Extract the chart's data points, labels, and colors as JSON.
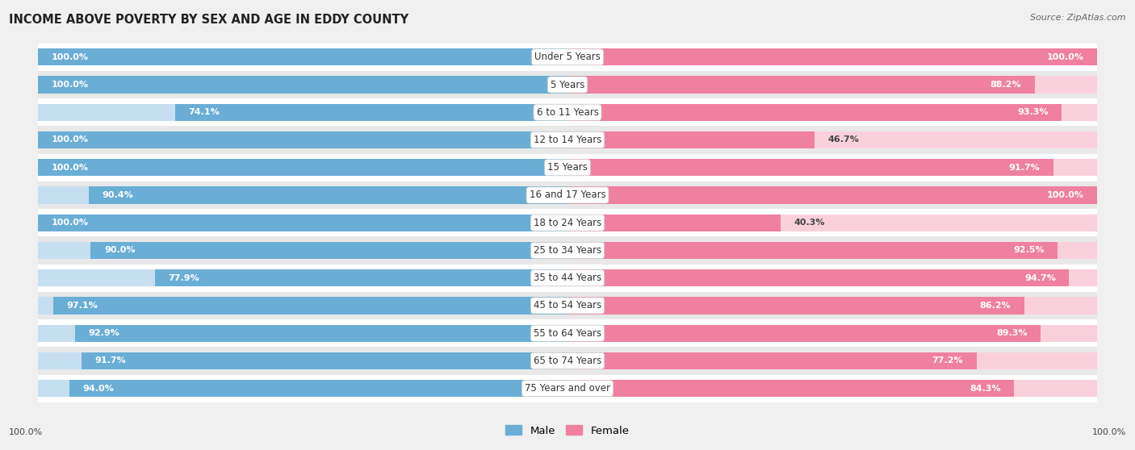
{
  "title": "INCOME ABOVE POVERTY BY SEX AND AGE IN EDDY COUNTY",
  "source": "Source: ZipAtlas.com",
  "categories": [
    "Under 5 Years",
    "5 Years",
    "6 to 11 Years",
    "12 to 14 Years",
    "15 Years",
    "16 and 17 Years",
    "18 to 24 Years",
    "25 to 34 Years",
    "35 to 44 Years",
    "45 to 54 Years",
    "55 to 64 Years",
    "65 to 74 Years",
    "75 Years and over"
  ],
  "male_values": [
    100.0,
    100.0,
    74.1,
    100.0,
    100.0,
    90.4,
    100.0,
    90.0,
    77.9,
    97.1,
    92.9,
    91.7,
    94.0
  ],
  "female_values": [
    100.0,
    88.2,
    93.3,
    46.7,
    91.7,
    100.0,
    40.3,
    92.5,
    94.7,
    86.2,
    89.3,
    77.2,
    84.3
  ],
  "male_color": "#6aaed6",
  "female_color": "#f080a0",
  "male_light_color": "#c5dff0",
  "female_light_color": "#fad0dc",
  "bar_height": 0.62,
  "max_val": 100.0,
  "label_fontsize": 8.0,
  "category_fontsize": 8.5
}
